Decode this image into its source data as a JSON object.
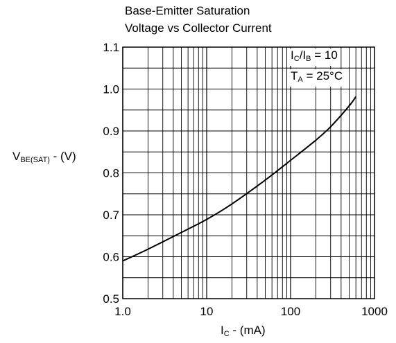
{
  "chart_data": {
    "type": "line",
    "title_line1": "Base-Emitter Saturation",
    "title_line2": "Voltage vs Collector Current",
    "ylabel": {
      "main": "V",
      "sub": "BE(SAT)",
      "suffix": " - (V)"
    },
    "xlabel": {
      "main": "I",
      "sub": "C",
      "suffix": " - (mA)"
    },
    "annotations": {
      "ratio": {
        "a": "I",
        "a_sub": "C",
        "sep": "/I",
        "b_sub": "B",
        "rest": " = 10"
      },
      "temp": {
        "a": "T",
        "a_sub": "A",
        "rest": " = 25°C"
      }
    },
    "xscale": "log",
    "xlim": [
      1,
      1000
    ],
    "ylim": [
      0.5,
      1.1
    ],
    "x_ticks": [
      1,
      10,
      100,
      1000
    ],
    "x_tick_labels": [
      "1.0",
      "10",
      "100",
      "1000"
    ],
    "y_ticks": [
      0.5,
      0.6,
      0.7,
      0.8,
      0.9,
      1.0,
      1.1
    ],
    "y_tick_labels": [
      "0.5",
      "0.6",
      "0.7",
      "0.8",
      "0.9",
      "1.0",
      "1.1"
    ],
    "grid": true,
    "series": [
      {
        "x": [
          1,
          2,
          5,
          10,
          20,
          50,
          100,
          200,
          300,
          500,
          600
        ],
        "y": [
          0.59,
          0.618,
          0.658,
          0.689,
          0.726,
          0.783,
          0.83,
          0.878,
          0.91,
          0.96,
          0.982
        ]
      }
    ],
    "line_color": "#000000",
    "grid_color": "#000000"
  }
}
